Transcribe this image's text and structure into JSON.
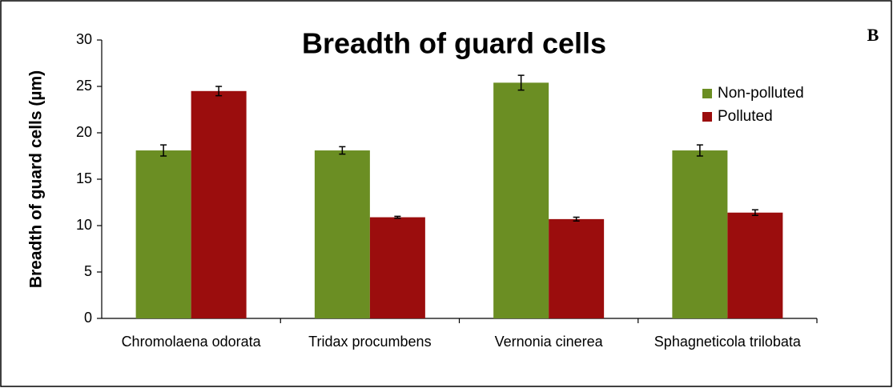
{
  "chart_data": {
    "type": "bar",
    "title": "Breadth of guard cells",
    "panel_label": "B",
    "ylabel": "Breadth of guard cells (µm)",
    "categories": [
      "Chromolaena odorata",
      "Tridax procumbens",
      "Vernonia cinerea",
      "Sphagneticola trilobata"
    ],
    "series": [
      {
        "name": "Non-polluted",
        "color": "#6b8e23",
        "values": [
          18.1,
          18.1,
          25.4,
          18.1
        ],
        "errors": [
          0.6,
          0.4,
          0.8,
          0.6
        ]
      },
      {
        "name": "Polluted",
        "color": "#9b0d0d",
        "values": [
          24.5,
          10.9,
          10.7,
          11.4
        ],
        "errors": [
          0.5,
          0.1,
          0.2,
          0.3
        ]
      }
    ],
    "ylim": [
      0,
      30
    ],
    "yticks": [
      0,
      5,
      10,
      15,
      20,
      25,
      30
    ],
    "legend": "upper right"
  }
}
